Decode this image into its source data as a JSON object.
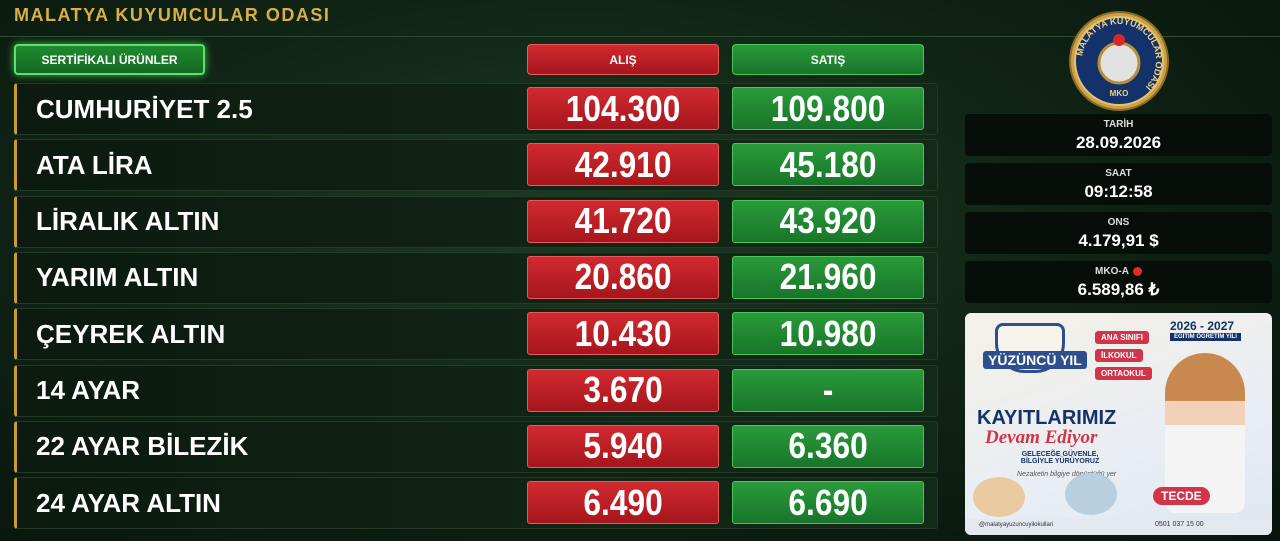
{
  "header": {
    "title": "MALATYA KUYUMCULAR ODASI"
  },
  "table": {
    "columns": [
      "SERTİFİKALI ÜRÜNLER",
      "ALIŞ",
      "SATIŞ"
    ],
    "rows": [
      [
        "CUMHURİYET 2.5",
        "104.300",
        "109.800"
      ],
      [
        "ATA LİRA",
        "42.910",
        "45.180"
      ],
      [
        "LİRALIK ALTIN",
        "41.720",
        "43.920"
      ],
      [
        "YARIM ALTIN",
        "20.860",
        "21.960"
      ],
      [
        "ÇEYREK ALTIN",
        "10.430",
        "10.980"
      ],
      [
        "14 AYAR",
        "3.670",
        "-"
      ],
      [
        "22 AYAR BİLEZİK",
        "5.940",
        "6.360"
      ],
      [
        "24 AYAR ALTIN",
        "6.490",
        "6.690"
      ]
    ]
  },
  "logo": {
    "ring": "MALATYA KUYUMCULAR ODASI",
    "abbr": "MKO"
  },
  "info": [
    {
      "label": "TARİH",
      "value": "28.09.2026"
    },
    {
      "label": "SAAT",
      "value": "09:12:58"
    },
    {
      "label": "ONS",
      "value": "4.179,91 $"
    },
    {
      "label": "MKO-A",
      "value": "6.589,86 ₺"
    }
  ],
  "ad": {
    "year": "2026 - 2027",
    "year_sub": "EĞİTİM ÖĞRETİM YILI",
    "school": "YÜZÜNCÜ YIL",
    "levels": [
      "ANA SINIFI",
      "İLKOKUL",
      "ORTAOKUL"
    ],
    "headline": "KAYITLARIMIZ",
    "headline2": "Devam Ediyor",
    "slogan": "GELECEĞE GÜVENLE, BİLGİYLE YÜRÜYORUZ",
    "motto": "Nezaketin bilgiye dönüştüğü yer",
    "place": "TECDE",
    "social": "@malatyayuzuncuyilokullari",
    "phone": "0501 037 15 00"
  }
}
